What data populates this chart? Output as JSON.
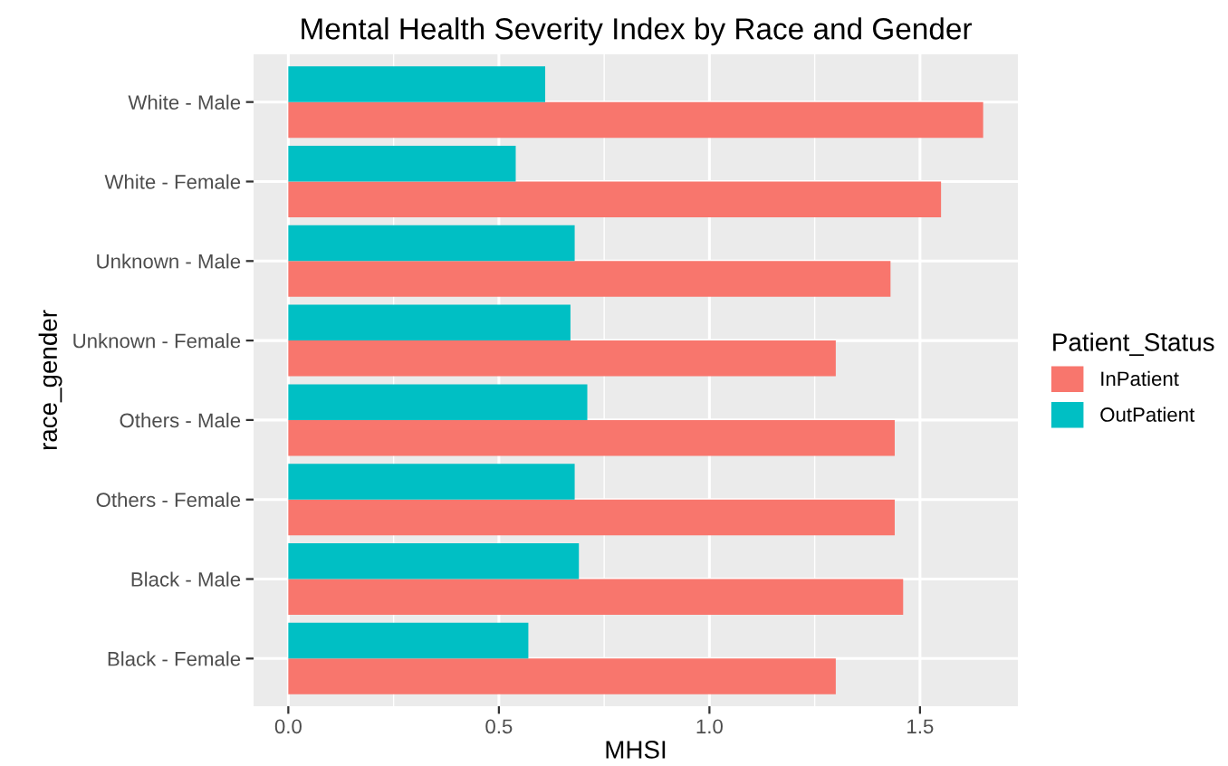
{
  "chart_data": {
    "type": "bar",
    "orientation": "horizontal",
    "title": "Mental Health Severity Index by Race and Gender",
    "xlabel": "MHSI",
    "ylabel": "race_gender",
    "legend_title": "Patient_Status",
    "categories": [
      "White - Male",
      "White - Female",
      "Unknown - Male",
      "Unknown - Female",
      "Others - Male",
      "Others - Female",
      "Black - Male",
      "Black - Female"
    ],
    "series": [
      {
        "name": "InPatient",
        "color": "#f8766d",
        "values": [
          1.65,
          1.55,
          1.43,
          1.3,
          1.44,
          1.44,
          1.46,
          1.3
        ]
      },
      {
        "name": "OutPatient",
        "color": "#00bfc4",
        "values": [
          0.61,
          0.54,
          0.68,
          0.67,
          0.71,
          0.68,
          0.69,
          0.57
        ]
      }
    ],
    "xlim": [
      -0.0825,
      1.7325
    ],
    "xticks": [
      {
        "value": 0,
        "label": "0.0"
      },
      0.5,
      {
        "value": 1,
        "label": "1.0"
      },
      1.5
    ],
    "grid": true,
    "legend": "right"
  }
}
